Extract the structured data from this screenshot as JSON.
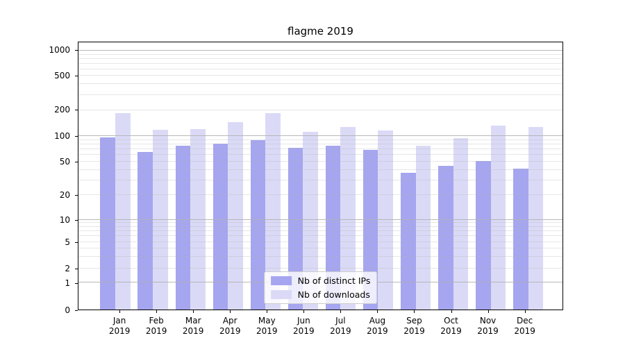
{
  "chart_data": {
    "type": "bar",
    "title": "flagme 2019",
    "xlabel": "",
    "ylabel": "",
    "categories": [
      "Jan",
      "Feb",
      "Mar",
      "Apr",
      "May",
      "Jun",
      "Jul",
      "Aug",
      "Sep",
      "Oct",
      "Nov",
      "Dec"
    ],
    "category_year": "2019",
    "series": [
      {
        "name": "Nb of distinct IPs",
        "color": "#a5a5f0",
        "values": [
          97,
          65,
          77,
          82,
          90,
          73,
          77,
          69,
          37,
          45,
          51,
          41
        ]
      },
      {
        "name": "Nb of downloads",
        "color": "#dadaf7",
        "values": [
          186,
          119,
          121,
          145,
          186,
          112,
          127,
          116,
          77,
          95,
          133,
          127
        ]
      }
    ],
    "yticks": [
      0,
      1,
      2,
      5,
      10,
      20,
      50,
      100,
      200,
      500,
      1000
    ],
    "ylim": [
      0,
      1270
    ],
    "yscale": "symlog",
    "grid": "on",
    "legend_position": "lower center",
    "axis_anchors": [
      {
        "v": 0,
        "f": 0.0
      },
      {
        "v": 1,
        "f": 0.1005
      },
      {
        "v": 2,
        "f": 0.154
      },
      {
        "v": 5,
        "f": 0.252
      },
      {
        "v": 10,
        "f": 0.3364
      },
      {
        "v": 20,
        "f": 0.4286
      },
      {
        "v": 50,
        "f": 0.5532
      },
      {
        "v": 100,
        "f": 0.6486
      },
      {
        "v": 200,
        "f": 0.7462
      },
      {
        "v": 500,
        "f": 0.8745
      },
      {
        "v": 1000,
        "f": 0.9681
      }
    ],
    "grid_major_values": [
      1,
      10,
      100,
      1000
    ],
    "grid_minor_values": [
      2,
      3,
      4,
      5,
      6,
      7,
      8,
      9,
      20,
      30,
      40,
      50,
      60,
      70,
      80,
      90,
      200,
      300,
      400,
      500,
      600,
      700,
      800,
      900
    ],
    "colors": {
      "grid": "#b0b0b0",
      "frame": "#000000",
      "background": "#ffffff",
      "text": "#000000"
    }
  }
}
